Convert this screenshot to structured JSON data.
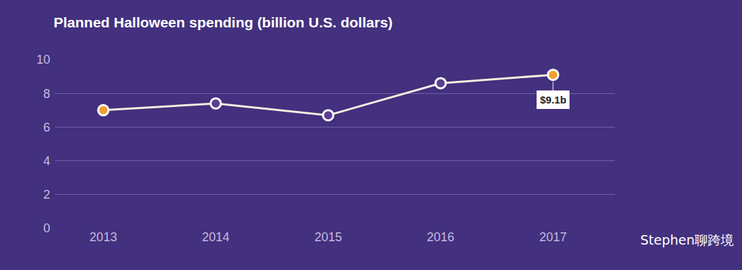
{
  "chart_data": {
    "type": "line",
    "title": "Planned Halloween spending (billion U.S. dollars)",
    "categories": [
      "2013",
      "2014",
      "2015",
      "2016",
      "2017"
    ],
    "values": [
      7.0,
      7.4,
      6.7,
      8.6,
      9.1
    ],
    "color": "#f5efe0",
    "colors": [
      "#f0a030",
      "#5a3f8f",
      "#5a3f8f",
      "#5a3f8f",
      "#f0a030"
    ],
    "marker": "circle",
    "ylim": [
      0,
      10
    ],
    "yticks": [
      0,
      2,
      4,
      6,
      8,
      10
    ],
    "grid": true,
    "annotations": [
      {
        "category": "2017",
        "text": "$9.1b"
      }
    ],
    "watermark": "Stephen聊跨境"
  }
}
